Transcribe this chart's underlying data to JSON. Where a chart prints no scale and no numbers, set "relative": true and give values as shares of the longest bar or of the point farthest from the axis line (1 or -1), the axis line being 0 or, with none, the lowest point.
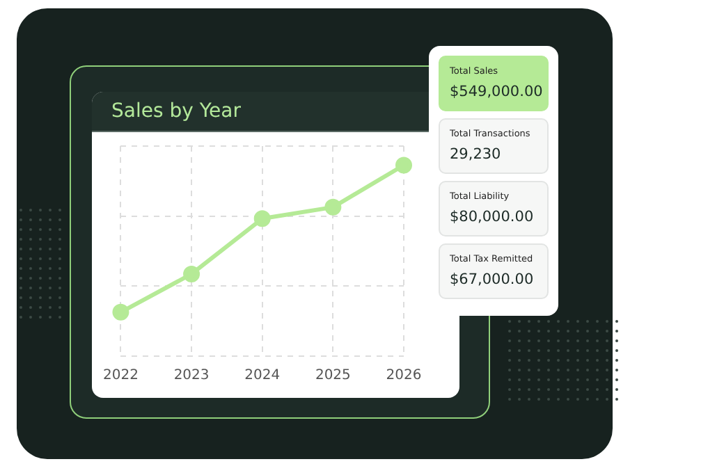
{
  "chart_data": [
    {
      "type": "line",
      "title": "Sales by Year",
      "categories": [
        "2022",
        "2023",
        "2024",
        "2025",
        "2026"
      ],
      "relative": true,
      "series": [
        {
          "color": "#b5ea96",
          "values": [
            0.23,
            0.43,
            0.72,
            0.78,
            1
          ]
        }
      ],
      "grid": true,
      "marker": "circle",
      "line_style": "solid",
      "legend": false
    },
    {
      "type": "other",
      "annotations": [
        "Total Sales",
        "$549,000.00",
        "Total Transactions",
        "29,230",
        "Total Liability",
        "$80,000.00",
        "Total Tax Remitted",
        "$67,000.00"
      ]
    }
  ]
}
